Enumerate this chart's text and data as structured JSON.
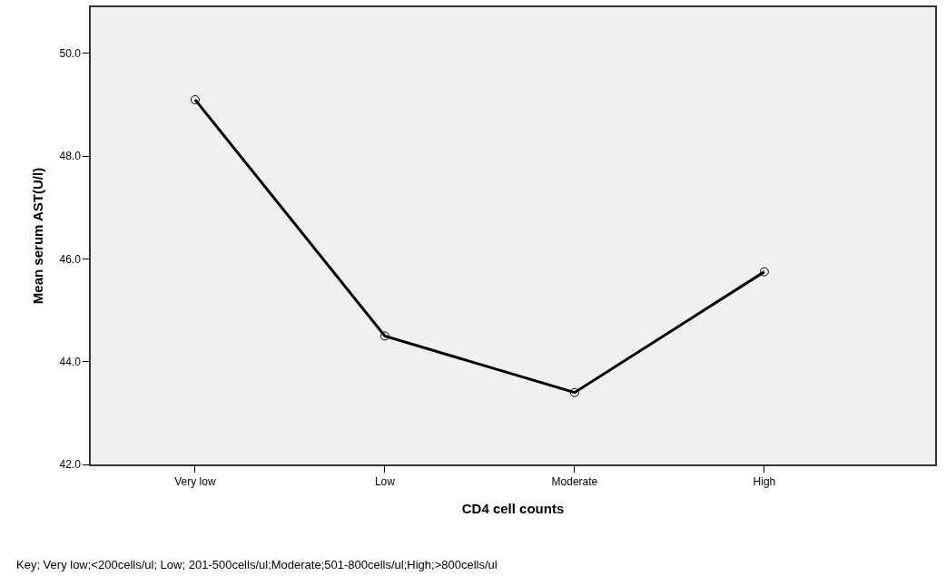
{
  "chart_data": {
    "type": "line",
    "xlabel": "CD4 cell counts",
    "ylabel": "Mean serum AST(U/l)",
    "categories": [
      "Very low",
      "Low",
      "Moderate",
      "High"
    ],
    "series": [
      {
        "color": "#000000",
        "values": [
          49.1,
          44.5,
          43.4,
          45.75
        ]
      }
    ],
    "ylim": [
      42,
      50.9
    ],
    "yticks": [
      {
        "value": 42,
        "label": "42.0"
      },
      {
        "value": 44,
        "label": "44.0"
      },
      {
        "value": 46,
        "label": "46.0"
      },
      {
        "value": 48,
        "label": "48.0"
      },
      {
        "value": 50,
        "label": "50.0"
      }
    ],
    "grid": false,
    "marker": "circle",
    "line_style": "solid",
    "annotations": [
      "Key; Very low;<200cells/ul; Low; 201-500cells/ul;Moderate;501-800cells/ul;High;>800cells/ul"
    ]
  }
}
